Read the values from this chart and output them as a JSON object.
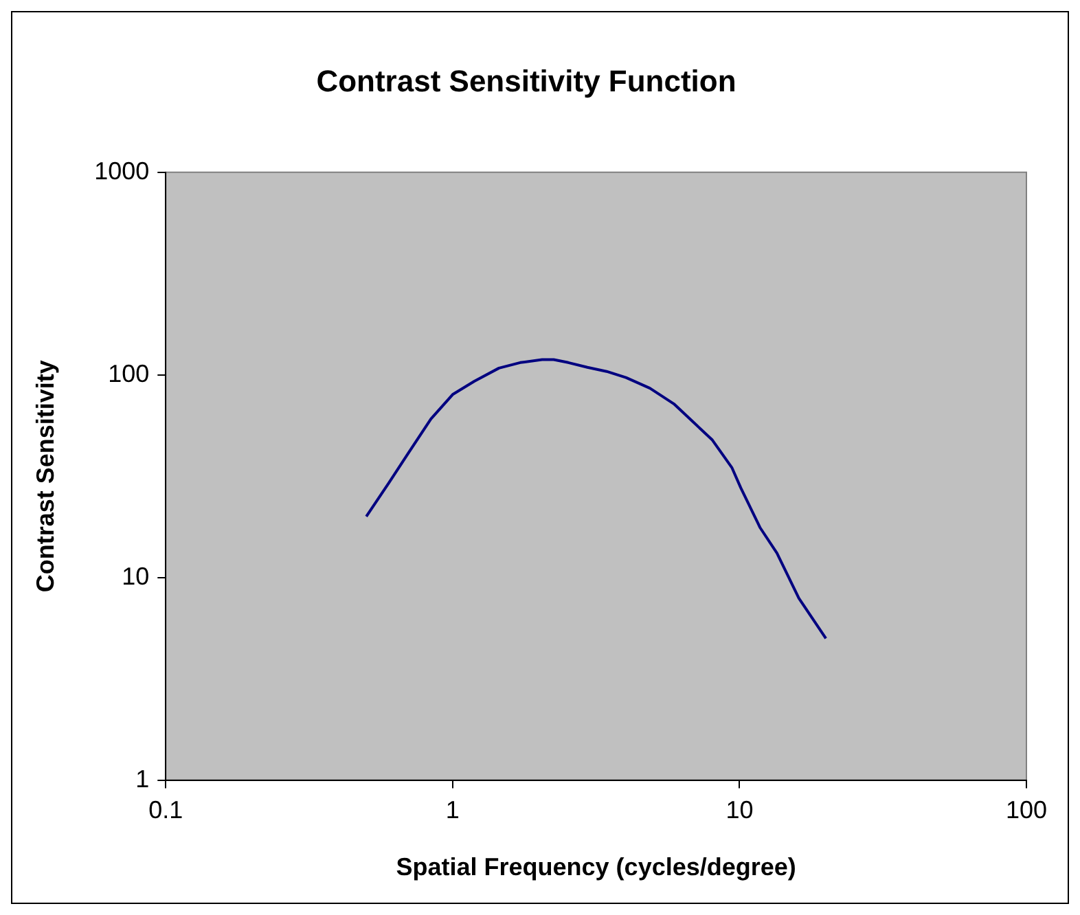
{
  "chart_data": {
    "type": "line",
    "title": "Contrast Sensitivity Function",
    "xlabel": "Spatial Frequency (cycles/degree)",
    "ylabel": "Contrast Sensitivity",
    "log": "xy",
    "grid": false,
    "legend": false,
    "marker": "none",
    "line_style": "solid",
    "xlim": [
      0.1,
      100
    ],
    "xticks": [
      0.1,
      1,
      10,
      100
    ],
    "ylim": [
      1,
      1000
    ],
    "yticks": [
      1,
      10,
      100,
      1000
    ],
    "series": [
      {
        "color": "#000080",
        "x": [
          0.5,
          0.6,
          0.7,
          0.84,
          1.0,
          1.19,
          1.45,
          1.72,
          2.05,
          2.25,
          2.53,
          2.95,
          3.44,
          4.02,
          4.87,
          5.9,
          8.04,
          9.4,
          10.1,
          11.8,
          13.5,
          16.1,
          20
        ],
        "values": [
          20,
          29.4,
          41,
          60.6,
          80,
          93,
          108,
          115,
          119,
          119,
          115,
          109,
          104,
          97,
          86,
          72,
          47.7,
          34.9,
          27.7,
          17.6,
          13.2,
          7.9,
          5
        ]
      }
    ]
  }
}
